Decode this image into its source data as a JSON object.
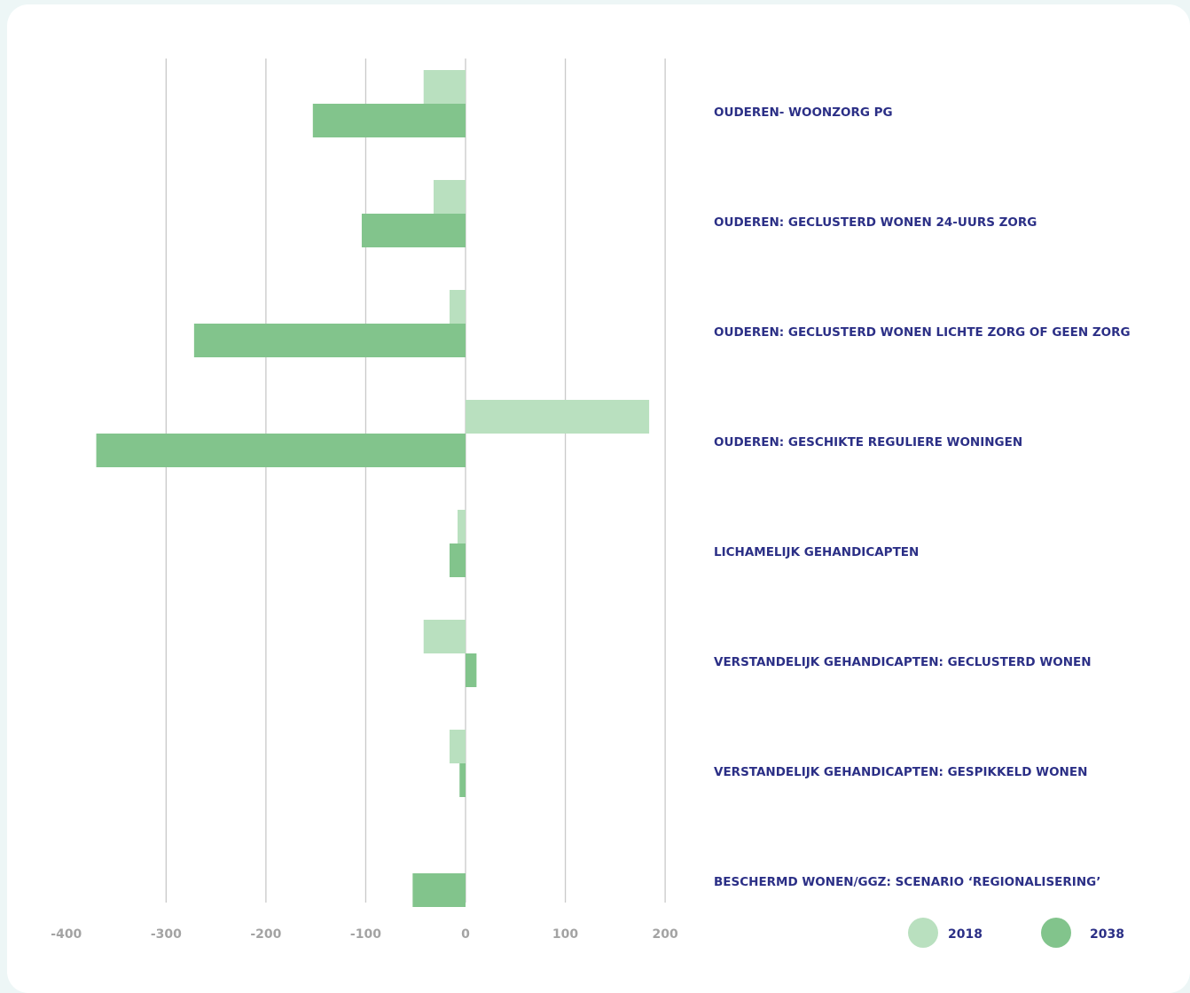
{
  "chart_data": {
    "type": "bar",
    "orientation": "horizontal",
    "categories": [
      "OUDEREN- WOONZORG PG",
      "OUDEREN: GECLUSTERD WONEN 24-UURS ZORG",
      "OUDEREN: GECLUSTERD WONEN LICHTE ZORG OF GEEN ZORG",
      "OUDEREN: GESCHIKTE REGULIERE WONINGEN",
      "LICHAMELIJK GEHANDICAPTEN",
      "VERSTANDELIJK GEHANDICAPTEN: GECLUSTERD WONEN",
      "VERSTANDELIJK GEHANDICAPTEN: GESPIKKELD WONEN",
      "BESCHERMD WONEN/GGZ: SCENARIO ‘REGIONALISERING’"
    ],
    "series": [
      {
        "name": "2018",
        "values": [
          -42,
          -32,
          -16,
          184,
          -8,
          -42,
          -16,
          0
        ],
        "color": "#b9e0bf"
      },
      {
        "name": "2038",
        "values": [
          -153,
          -104,
          -272,
          -370,
          -16,
          11,
          -6,
          -53
        ],
        "color": "#82c48c"
      }
    ],
    "xlim": [
      -400,
      200
    ],
    "x_ticks": [
      -400,
      -300,
      -200,
      -100,
      0,
      100,
      200
    ],
    "x_tick_labels": [
      "-400",
      "-300",
      "-200",
      "-100",
      "0",
      "100",
      "200"
    ],
    "gridlines": [
      -300,
      -200,
      -100,
      0,
      100,
      200
    ],
    "grid": true,
    "legend_position": "bottom-right",
    "title": "",
    "xlabel": "",
    "ylabel": ""
  }
}
